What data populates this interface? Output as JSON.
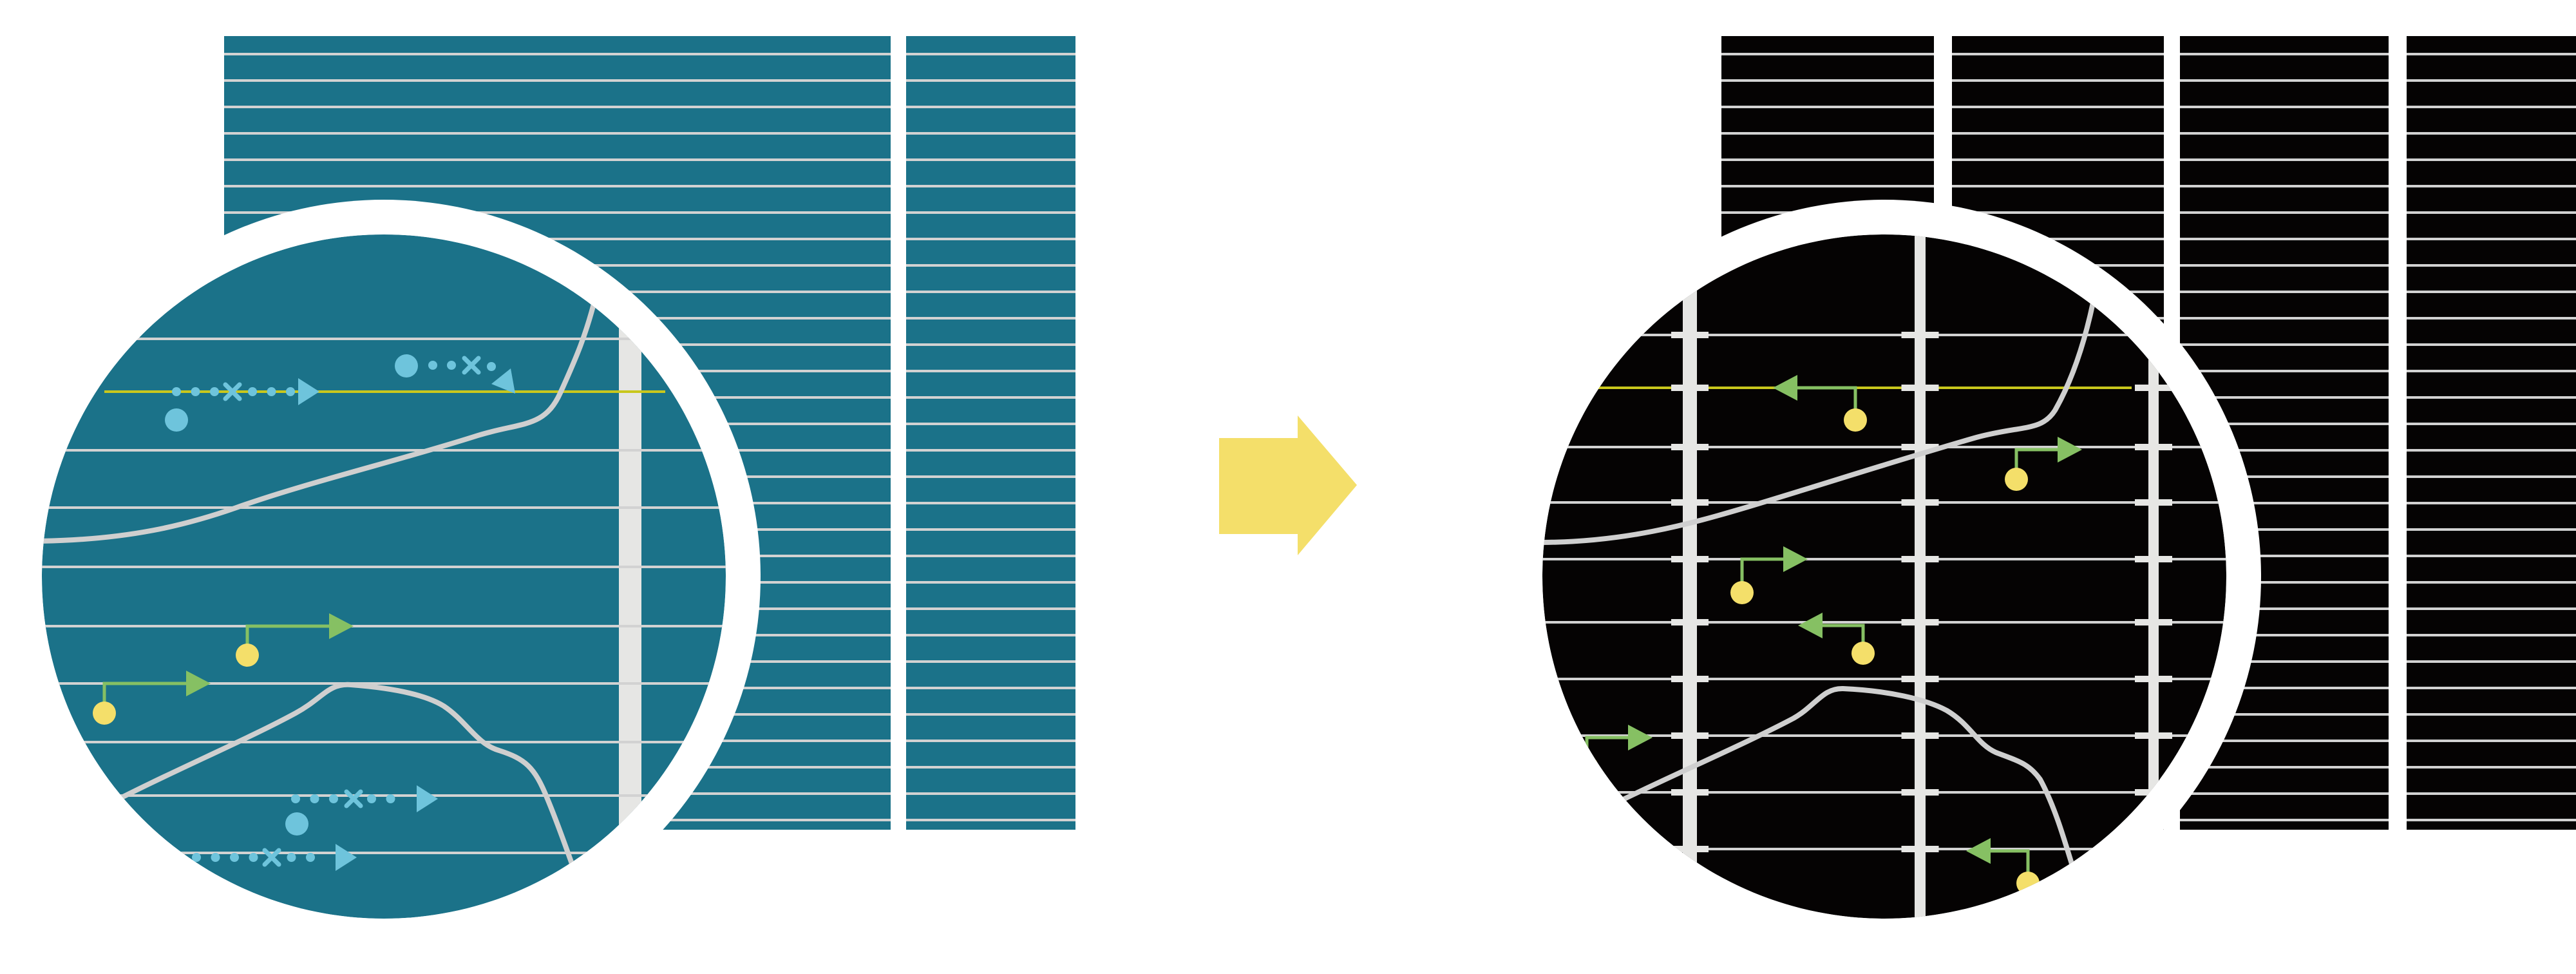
{
  "colors": {
    "background": "#ffffff",
    "before_panel": "#1b7289",
    "after_panel": "#050303",
    "grid_line": "#d2d2d2",
    "column_bar": "#e6e6e4",
    "curve": "#cfcfcf",
    "highlight_line": "#c9c71c",
    "dotted_arrow": "#6ec4dc",
    "step_arrow": "#86c063",
    "marker": "#f4df6a",
    "transition_arrow": "#f4df6a",
    "lens_ring": "#ffffff"
  },
  "icons": {
    "transition": "right-arrow-icon",
    "lens": "magnifier-lens-icon",
    "marker": "circle-marker-icon"
  }
}
